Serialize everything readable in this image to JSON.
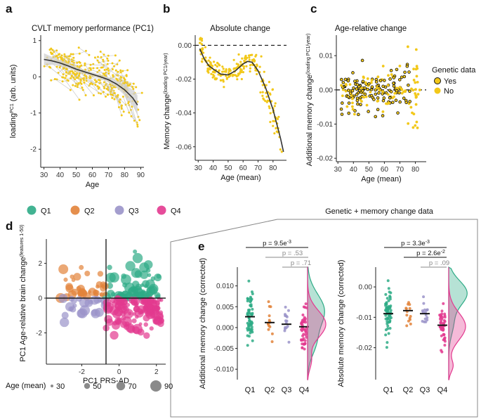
{
  "colors": {
    "yellow": "#f2c81a",
    "q1": "#2eab86",
    "q2": "#e2833a",
    "q3": "#9a93c9",
    "q4": "#e3398f",
    "band": "#d0d0d0"
  },
  "panel_labels": {
    "a": "a",
    "b": "b",
    "c": "c",
    "d": "d",
    "e": "e"
  },
  "section_header": "Genetic + memory change data",
  "legend_genetic": {
    "title": "Genetic data",
    "yes": "Yes",
    "no": "No"
  },
  "legend_quartiles": [
    "Q1",
    "Q2",
    "Q3",
    "Q4"
  ],
  "legend_age": {
    "title": "Age (mean)",
    "items": [
      "30",
      "50",
      "70",
      "90"
    ]
  },
  "chart_data": [
    {
      "id": "a",
      "type": "scatter",
      "title": "CVLT memory performance (PC1)",
      "xlabel": "Age",
      "ylabel": "loading",
      "ylabel_sup": "PC1",
      "ylabel_rest": " (arb. units)",
      "xticks": [
        "30",
        "40",
        "50",
        "60",
        "70",
        "80",
        "90"
      ],
      "yticks": [
        "1",
        "0",
        "-1",
        "-2"
      ],
      "xlim": [
        28,
        92
      ],
      "ylim": [
        -2.5,
        1.15
      ],
      "fit": {
        "x": [
          30,
          35,
          40,
          45,
          50,
          55,
          60,
          65,
          70,
          75,
          80,
          85,
          88
        ],
        "y": [
          0.48,
          0.44,
          0.38,
          0.3,
          0.21,
          0.14,
          0.07,
          0.0,
          -0.08,
          -0.2,
          -0.36,
          -0.58,
          -0.78
        ]
      },
      "ci_halfwidth": [
        0.17,
        0.11,
        0.08,
        0.07,
        0.06,
        0.06,
        0.06,
        0.06,
        0.07,
        0.1,
        0.15,
        0.22,
        0.27
      ]
    },
    {
      "id": "b",
      "type": "scatter",
      "title": "Absolute change",
      "xlabel": "Age (mean)",
      "ylabel": "Memory change",
      "ylabel_sup": "(loading PC1/year)",
      "xticks": [
        "30",
        "40",
        "50",
        "60",
        "70",
        "80"
      ],
      "yticks": [
        "0.00",
        "-0.02",
        "-0.04",
        "-0.06"
      ],
      "xlim": [
        28,
        89
      ],
      "ylim": [
        -0.068,
        0.006
      ],
      "fit": {
        "x": [
          31,
          34,
          37,
          40,
          45,
          50,
          55,
          60,
          63,
          66,
          70,
          75,
          80,
          85,
          87
        ],
        "y": [
          -0.002,
          -0.008,
          -0.012,
          -0.014,
          -0.017,
          -0.0175,
          -0.015,
          -0.011,
          -0.0095,
          -0.01,
          -0.015,
          -0.025,
          -0.038,
          -0.055,
          -0.063
        ]
      }
    },
    {
      "id": "c",
      "type": "scatter",
      "title": "Age-relative change",
      "xlabel": "Age (mean)",
      "ylabel": "Additional memory change",
      "ylabel_sup": "(loading PC1/year)",
      "xticks": [
        "30",
        "40",
        "50",
        "60",
        "70",
        "80"
      ],
      "yticks": [
        "0.01",
        "0.00",
        "-0.01",
        "-0.02"
      ],
      "xlim": [
        29,
        87
      ],
      "ylim": [
        -0.021,
        0.016
      ]
    },
    {
      "id": "d",
      "type": "scatter",
      "xlabel": "PC1 PRS-AD",
      "ylabel": "PC1 Age-relative brain change",
      "ylabel_sup": "(features 1-50)",
      "xticks": [
        "-2",
        "0",
        "2"
      ],
      "yticks": [
        "2",
        "0",
        "-2"
      ],
      "xlim": [
        -3.9,
        2.5
      ],
      "ylim": [
        -3.8,
        3.4
      ],
      "quadrant_x": -0.7,
      "quadrant_y": 0
    },
    {
      "id": "e1",
      "type": "strip",
      "ylabel": "Additional memory change (corrected)",
      "categories": [
        "Q1",
        "Q2",
        "Q3",
        "Q4"
      ],
      "medians": [
        0.0026,
        0.0012,
        0.0008,
        0.0002
      ],
      "yticks": [
        "0.010",
        "0.005",
        "0.000",
        "-0.005",
        "-0.010"
      ],
      "ylim": [
        -0.0125,
        0.0145
      ],
      "brackets": [
        {
          "label": "p = 9.5e",
          "sup": "-3",
          "from": "Q1",
          "to": "Q4",
          "faded": false
        },
        {
          "label": "p = .53",
          "sup": "",
          "from": "Q2",
          "to": "Q4",
          "faded": true
        },
        {
          "label": "p = .71",
          "sup": "",
          "from": "Q3",
          "to": "Q4",
          "faded": true
        }
      ]
    },
    {
      "id": "e2",
      "type": "strip",
      "ylabel": "Absolute memory change (corrected)",
      "categories": [
        "Q1",
        "Q2",
        "Q3",
        "Q4"
      ],
      "medians": [
        -0.0088,
        -0.0078,
        -0.0088,
        -0.0126
      ],
      "yticks": [
        "0.00",
        "-0.01",
        "-0.02"
      ],
      "ylim": [
        -0.0305,
        0.0065
      ],
      "brackets": [
        {
          "label": "p = 3.3e",
          "sup": "-3",
          "from": "Q1",
          "to": "Q4",
          "faded": false
        },
        {
          "label": "p = 2.6e",
          "sup": "-2",
          "from": "Q2",
          "to": "Q4",
          "faded": false
        },
        {
          "label": "p = .09",
          "sup": "",
          "from": "Q3",
          "to": "Q4",
          "faded": true
        }
      ]
    }
  ]
}
